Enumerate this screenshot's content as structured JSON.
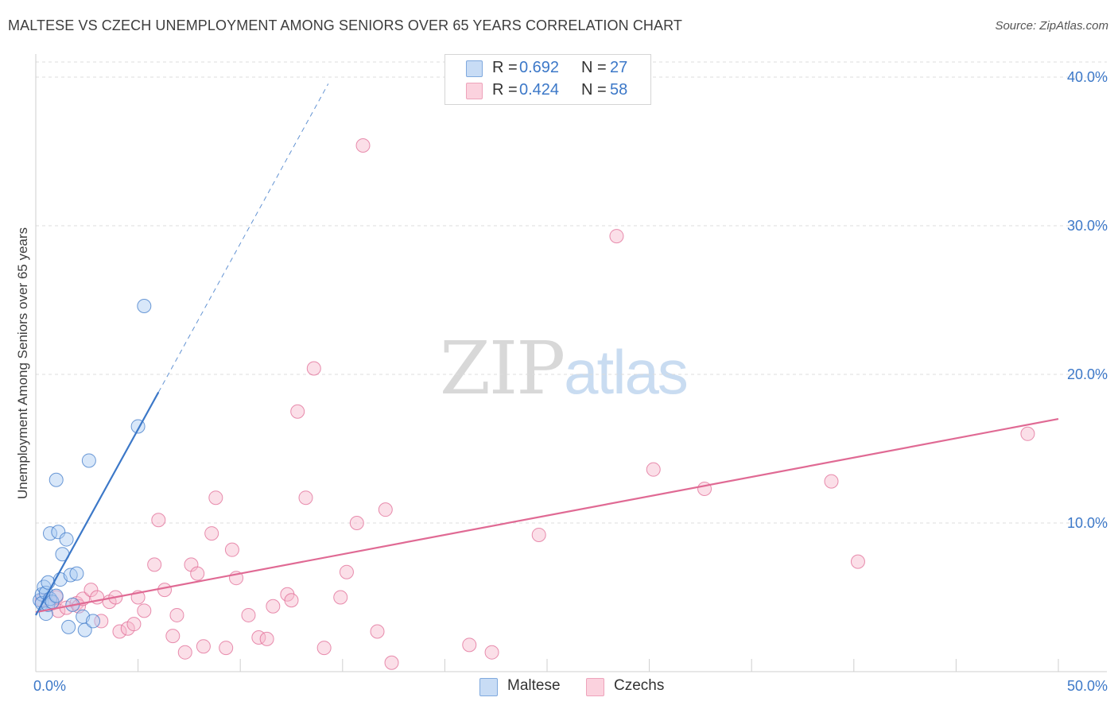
{
  "header": {
    "title": "MALTESE VS CZECH UNEMPLOYMENT AMONG SENIORS OVER 65 YEARS CORRELATION CHART",
    "source": "Source: ZipAtlas.com"
  },
  "watermark": {
    "zip": "ZIP",
    "atlas": "atlas"
  },
  "legend": {
    "rows": [
      {
        "r_label": "R =",
        "r_value": "0.692",
        "n_label": "N =",
        "n_value": "27",
        "color": "#a9c9f2"
      },
      {
        "r_label": "R =",
        "r_value": "0.424",
        "n_label": "N =",
        "n_value": "58",
        "color": "#f6b9cb"
      }
    ]
  },
  "bottom_legend": {
    "maltese": "Maltese",
    "czechs": "Czechs"
  },
  "chart_data": {
    "type": "scatter",
    "title": "MALTESE VS CZECH UNEMPLOYMENT AMONG SENIORS OVER 65 YEARS CORRELATION CHART",
    "xlabel": "",
    "ylabel": "Unemployment Among Seniors over 65 years",
    "xlim": [
      0,
      50
    ],
    "ylim": [
      0,
      40
    ],
    "x_tick_labels": [
      "0.0%",
      "50.0%"
    ],
    "y_ticks": [
      10,
      20,
      30,
      40
    ],
    "y_tick_labels": [
      "10.0%",
      "20.0%",
      "30.0%",
      "40.0%"
    ],
    "grid": true,
    "colors": {
      "maltese": "#3c78c8",
      "maltese_fill": "#a9c9f2",
      "czechs": "#e06a94",
      "czechs_fill": "#f6b9cb"
    },
    "series": [
      {
        "name": "Maltese",
        "r": 0.692,
        "n": 27,
        "trend": {
          "x0": 0.0,
          "y0": 3.8,
          "x1": 6.0,
          "y1": 18.8,
          "x_dash_end": 14.3
        },
        "points": [
          [
            0.2,
            4.8
          ],
          [
            0.3,
            5.2
          ],
          [
            0.3,
            4.6
          ],
          [
            0.4,
            5.7
          ],
          [
            0.5,
            3.9
          ],
          [
            0.5,
            5.3
          ],
          [
            0.6,
            4.5
          ],
          [
            0.6,
            6.0
          ],
          [
            0.7,
            4.9
          ],
          [
            0.8,
            4.7
          ],
          [
            0.7,
            9.3
          ],
          [
            1.0,
            5.1
          ],
          [
            1.0,
            12.9
          ],
          [
            1.1,
            9.4
          ],
          [
            1.2,
            6.2
          ],
          [
            1.3,
            7.9
          ],
          [
            1.5,
            8.9
          ],
          [
            1.6,
            3.0
          ],
          [
            1.7,
            6.5
          ],
          [
            1.8,
            4.5
          ],
          [
            2.0,
            6.6
          ],
          [
            2.3,
            3.7
          ],
          [
            2.4,
            2.8
          ],
          [
            2.6,
            14.2
          ],
          [
            2.8,
            3.4
          ],
          [
            5.0,
            16.5
          ],
          [
            5.3,
            24.6
          ]
        ]
      },
      {
        "name": "Czechs",
        "r": 0.424,
        "n": 58,
        "trend": {
          "x0": 0.0,
          "y0": 4.0,
          "x1": 50.0,
          "y1": 17.0
        },
        "points": [
          [
            0.3,
            4.8
          ],
          [
            0.8,
            4.6
          ],
          [
            1.0,
            5.0
          ],
          [
            1.1,
            4.1
          ],
          [
            1.5,
            4.3
          ],
          [
            2.0,
            4.6
          ],
          [
            2.1,
            4.4
          ],
          [
            2.3,
            4.9
          ],
          [
            2.7,
            5.5
          ],
          [
            3.0,
            5.0
          ],
          [
            3.2,
            3.4
          ],
          [
            3.6,
            4.7
          ],
          [
            3.9,
            5.0
          ],
          [
            4.1,
            2.7
          ],
          [
            4.5,
            2.9
          ],
          [
            4.8,
            3.2
          ],
          [
            5.0,
            5.0
          ],
          [
            5.3,
            4.1
          ],
          [
            5.8,
            7.2
          ],
          [
            6.0,
            10.2
          ],
          [
            6.3,
            5.5
          ],
          [
            6.7,
            2.4
          ],
          [
            6.9,
            3.8
          ],
          [
            7.3,
            1.3
          ],
          [
            7.6,
            7.2
          ],
          [
            7.9,
            6.6
          ],
          [
            8.2,
            1.7
          ],
          [
            8.6,
            9.3
          ],
          [
            8.8,
            11.7
          ],
          [
            9.3,
            1.6
          ],
          [
            9.6,
            8.2
          ],
          [
            9.8,
            6.3
          ],
          [
            10.4,
            3.8
          ],
          [
            10.9,
            2.3
          ],
          [
            11.3,
            2.2
          ],
          [
            11.6,
            4.4
          ],
          [
            12.3,
            5.2
          ],
          [
            12.5,
            4.8
          ],
          [
            12.8,
            17.5
          ],
          [
            13.2,
            11.7
          ],
          [
            13.6,
            20.4
          ],
          [
            14.1,
            1.6
          ],
          [
            14.9,
            5.0
          ],
          [
            15.2,
            6.7
          ],
          [
            15.7,
            10.0
          ],
          [
            16.0,
            35.4
          ],
          [
            16.7,
            2.7
          ],
          [
            17.1,
            10.9
          ],
          [
            17.4,
            0.6
          ],
          [
            21.2,
            1.8
          ],
          [
            22.3,
            1.3
          ],
          [
            24.6,
            9.2
          ],
          [
            28.4,
            29.3
          ],
          [
            30.2,
            13.6
          ],
          [
            32.7,
            12.3
          ],
          [
            38.9,
            12.8
          ],
          [
            40.2,
            7.4
          ],
          [
            48.5,
            16.0
          ]
        ]
      }
    ]
  }
}
